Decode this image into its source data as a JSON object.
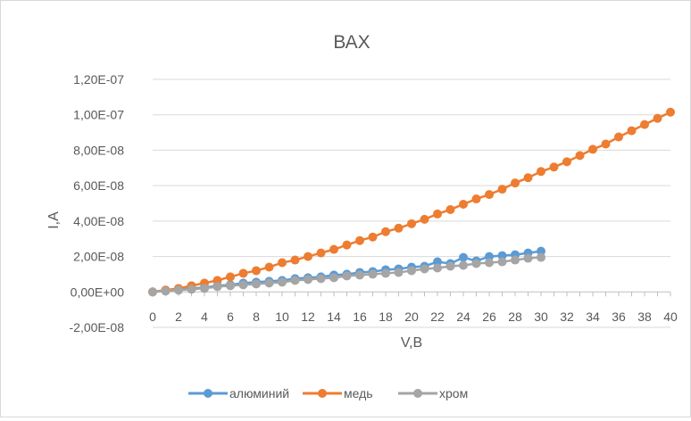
{
  "chart_data": {
    "type": "scatter",
    "title": "ВАХ",
    "xlabel": "V,B",
    "ylabel": "I,A",
    "xlim": [
      0,
      40
    ],
    "ylim": [
      -2e-08,
      1.2e-07
    ],
    "x_ticks": [
      "0",
      "2",
      "4",
      "6",
      "8",
      "10",
      "12",
      "14",
      "16",
      "18",
      "20",
      "22",
      "24",
      "26",
      "28",
      "30",
      "32",
      "34",
      "36",
      "38",
      "40"
    ],
    "y_ticks": [
      {
        "value": 1.2e-07,
        "label": "1,20E-07"
      },
      {
        "value": 1e-07,
        "label": "1,00E-07"
      },
      {
        "value": 8e-08,
        "label": "8,00E-08"
      },
      {
        "value": 6e-08,
        "label": "6,00E-08"
      },
      {
        "value": 4e-08,
        "label": "4,00E-08"
      },
      {
        "value": 2e-08,
        "label": "2,00E-08"
      },
      {
        "value": 0,
        "label": "0,00E+00"
      },
      {
        "value": -2e-08,
        "label": "-2,00E-08"
      }
    ],
    "grid": true,
    "legend_position": "bottom",
    "series": [
      {
        "name": "алюминий",
        "color": "#5b9bd5",
        "x": [
          0,
          1,
          2,
          3,
          4,
          5,
          6,
          7,
          8,
          9,
          10,
          11,
          12,
          13,
          14,
          15,
          16,
          17,
          18,
          19,
          20,
          21,
          22,
          23,
          24,
          25,
          26,
          27,
          28,
          29,
          30
        ],
        "y": [
          0,
          1e-09,
          1.5e-09,
          2e-09,
          2.5e-09,
          3.5e-09,
          4e-09,
          5e-09,
          5.5e-09,
          6e-09,
          6.5e-09,
          7.5e-09,
          8e-09,
          8.5e-09,
          9.5e-09,
          1e-08,
          1.1e-08,
          1.15e-08,
          1.25e-08,
          1.3e-08,
          1.4e-08,
          1.45e-08,
          1.7e-08,
          1.6e-08,
          1.95e-08,
          1.75e-08,
          2e-08,
          2.05e-08,
          2.1e-08,
          2.2e-08,
          2.3e-08
        ]
      },
      {
        "name": "медь",
        "color": "#ed7d31",
        "x": [
          0,
          1,
          2,
          3,
          4,
          5,
          6,
          7,
          8,
          9,
          10,
          11,
          12,
          13,
          14,
          15,
          16,
          17,
          18,
          19,
          20,
          21,
          22,
          23,
          24,
          25,
          26,
          27,
          28,
          29,
          30,
          31,
          32,
          33,
          34,
          35,
          36,
          37,
          38,
          39,
          40
        ],
        "y": [
          0,
          1e-09,
          2e-09,
          3.5e-09,
          5e-09,
          6.5e-09,
          8.5e-09,
          1.05e-08,
          1.2e-08,
          1.4e-08,
          1.65e-08,
          1.8e-08,
          2e-08,
          2.2e-08,
          2.4e-08,
          2.65e-08,
          2.9e-08,
          3.1e-08,
          3.4e-08,
          3.6e-08,
          3.85e-08,
          4.1e-08,
          4.4e-08,
          4.65e-08,
          4.95e-08,
          5.25e-08,
          5.5e-08,
          5.8e-08,
          6.15e-08,
          6.45e-08,
          6.8e-08,
          7.05e-08,
          7.35e-08,
          7.7e-08,
          8.05e-08,
          8.35e-08,
          8.75e-08,
          9.1e-08,
          9.45e-08,
          9.8e-08,
          1.015e-07
        ]
      },
      {
        "name": "хром",
        "color": "#a5a5a5",
        "x": [
          0,
          1,
          2,
          3,
          4,
          5,
          6,
          7,
          8,
          9,
          10,
          11,
          12,
          13,
          14,
          15,
          16,
          17,
          18,
          19,
          20,
          21,
          22,
          23,
          24,
          25,
          26,
          27,
          28,
          29,
          30
        ],
        "y": [
          0,
          5e-10,
          1e-09,
          1.5e-09,
          2e-09,
          3e-09,
          3.5e-09,
          4e-09,
          4.5e-09,
          5e-09,
          5.5e-09,
          6.5e-09,
          7e-09,
          7.5e-09,
          8e-09,
          9e-09,
          9.5e-09,
          1e-08,
          1.05e-08,
          1.1e-08,
          1.2e-08,
          1.3e-08,
          1.35e-08,
          1.45e-08,
          1.5e-08,
          1.6e-08,
          1.65e-08,
          1.7e-08,
          1.8e-08,
          1.9e-08,
          1.95e-08
        ]
      }
    ]
  }
}
